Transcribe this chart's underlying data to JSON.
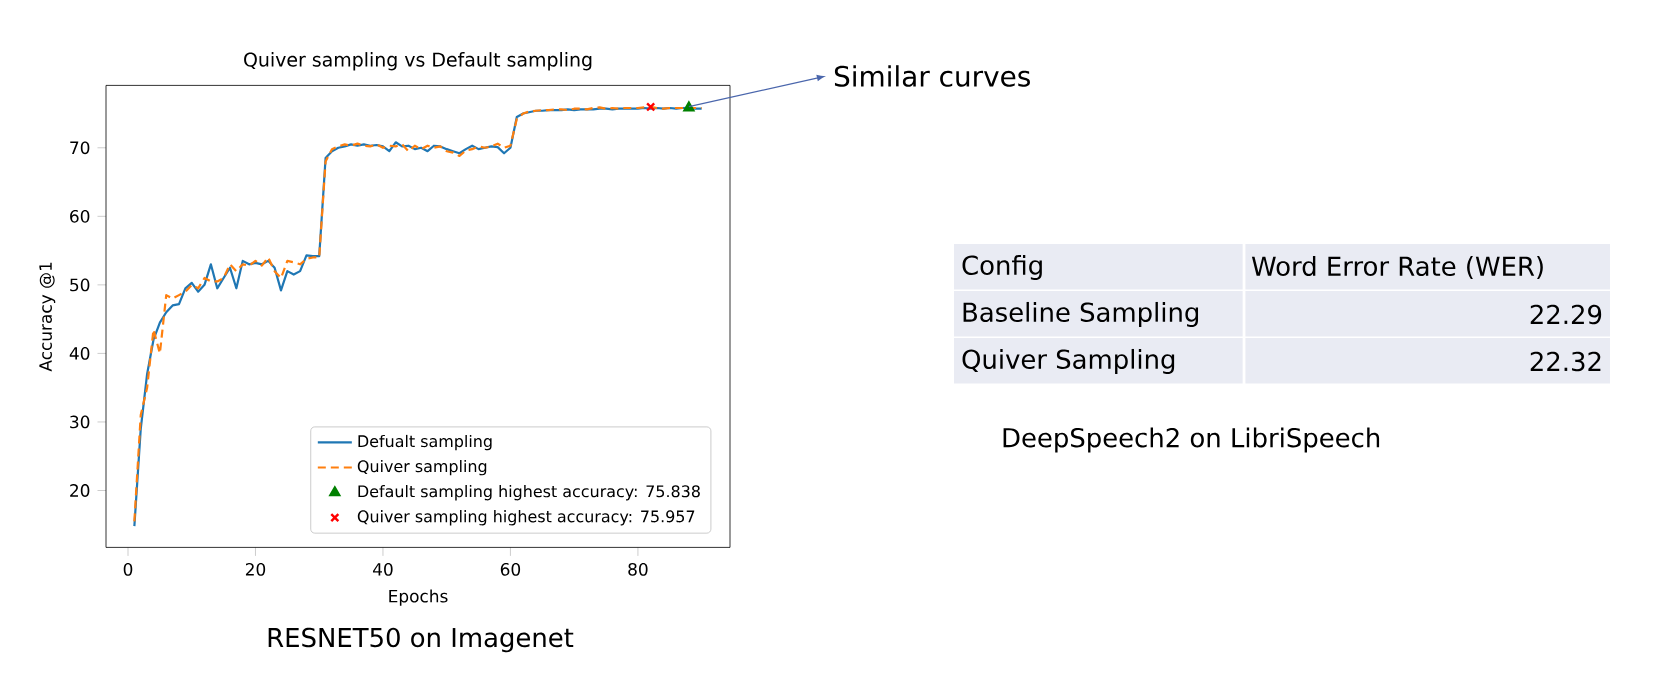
{
  "chart_data": [
    {
      "type": "line",
      "title": "Quiver sampling vs Default sampling",
      "xlabel": "Epochs",
      "ylabel": "Accuracy @1",
      "x": [
        1,
        2,
        3,
        4,
        5,
        6,
        7,
        8,
        9,
        10,
        11,
        12,
        13,
        14,
        15,
        16,
        17,
        18,
        19,
        20,
        21,
        22,
        23,
        24,
        25,
        26,
        27,
        28,
        29,
        30,
        31,
        32,
        33,
        34,
        35,
        36,
        37,
        38,
        39,
        40,
        41,
        42,
        43,
        44,
        45,
        46,
        47,
        48,
        49,
        50,
        51,
        52,
        53,
        54,
        55,
        56,
        57,
        58,
        59,
        60,
        61,
        62,
        63,
        64,
        65,
        66,
        67,
        68,
        69,
        70,
        71,
        72,
        73,
        74,
        75,
        76,
        77,
        78,
        79,
        80,
        81,
        82,
        83,
        84,
        85,
        86,
        87,
        88,
        89,
        90
      ],
      "series": [
        {
          "name": "Defualt sampling",
          "color": "#1f77b4",
          "line_style": "solid",
          "values": [
            14.8,
            29,
            37,
            42,
            44.5,
            46,
            47,
            47.2,
            49.5,
            50.3,
            49,
            50,
            53,
            49.5,
            51,
            52.5,
            49.5,
            53.5,
            53,
            53.2,
            53,
            53.5,
            52.5,
            49.2,
            52,
            51.5,
            52,
            54.3,
            54.2,
            54.2,
            68.5,
            69.5,
            70,
            70.2,
            70.5,
            70.3,
            70.5,
            70.3,
            70.4,
            70.2,
            69.5,
            70.8,
            70.2,
            70.3,
            69.8,
            70,
            69.5,
            70.3,
            70.2,
            69.8,
            69.5,
            69.2,
            69.8,
            70.3,
            69.8,
            70,
            70.2,
            70.1,
            69.2,
            70,
            74.5,
            75,
            75.2,
            75.4,
            75.4,
            75.5,
            75.5,
            75.5,
            75.6,
            75.5,
            75.6,
            75.6,
            75.6,
            75.7,
            75.7,
            75.6,
            75.7,
            75.7,
            75.7,
            75.7,
            75.8,
            75.7,
            75.8,
            75.7,
            75.8,
            75.7,
            75.8,
            75.838,
            75.7,
            75.7
          ]
        },
        {
          "name": "Quiver sampling",
          "color": "#ff7f0e",
          "line_style": "dashed",
          "values": [
            15.5,
            31,
            35,
            43.5,
            40,
            48.5,
            48,
            48.5,
            49,
            50,
            49.5,
            51,
            50.5,
            50.5,
            51,
            53,
            52,
            53,
            52.8,
            53.5,
            52.8,
            54,
            52,
            51,
            53.5,
            53.3,
            53,
            53.8,
            54,
            54,
            68,
            69.8,
            70.2,
            70.5,
            70.3,
            70.6,
            70.3,
            70.2,
            70.5,
            70,
            70.3,
            70.2,
            70.5,
            69.5,
            70.3,
            69.8,
            70.3,
            70,
            70.2,
            69.5,
            69.3,
            68.8,
            69.6,
            69.8,
            70.2,
            70,
            70.2,
            70.6,
            70,
            70.3,
            74.2,
            75,
            75.3,
            75.4,
            75.5,
            75.5,
            75.6,
            75.6,
            75.5,
            75.7,
            75.7,
            75.6,
            75.8,
            75.9,
            75.7,
            75.8,
            75.7,
            75.8,
            75.8,
            75.8,
            75.9,
            75.957,
            75.8,
            75.7,
            75.8,
            75.8,
            75.8,
            75.8,
            75.8,
            75.8
          ]
        },
        {
          "name": "Default sampling highest accuracy: 75.838",
          "type": "scatter",
          "marker": "triangle",
          "color": "#008000",
          "x": [
            88
          ],
          "values": [
            75.838
          ]
        },
        {
          "name": "Quiver sampling highest accuracy: 75.957",
          "type": "scatter",
          "marker": "cross",
          "color": "#ff0000",
          "x": [
            82
          ],
          "values": [
            75.957
          ]
        }
      ],
      "xlim": [
        -3.45,
        94.45
      ],
      "ylim": [
        11.7,
        79.1
      ],
      "xticks": [
        0,
        20,
        40,
        60,
        80
      ],
      "yticks": [
        20,
        30,
        40,
        50,
        60,
        70
      ],
      "legend": "bottom right",
      "annotations": [
        {
          "text": "Similar curves",
          "x": 88,
          "y": 76
        },
        "RESNET50 on Imagenet"
      ]
    },
    {
      "type": "other",
      "xlabel": "Config",
      "ylabel": "Word Error Rate (WER)",
      "categories": [
        "Baseline Sampling",
        "Quiver Sampling"
      ],
      "values": [
        22.29,
        22.32
      ],
      "data_labels": true,
      "annotations": [
        "DeepSpeech2 on LibriSpeech"
      ]
    }
  ]
}
